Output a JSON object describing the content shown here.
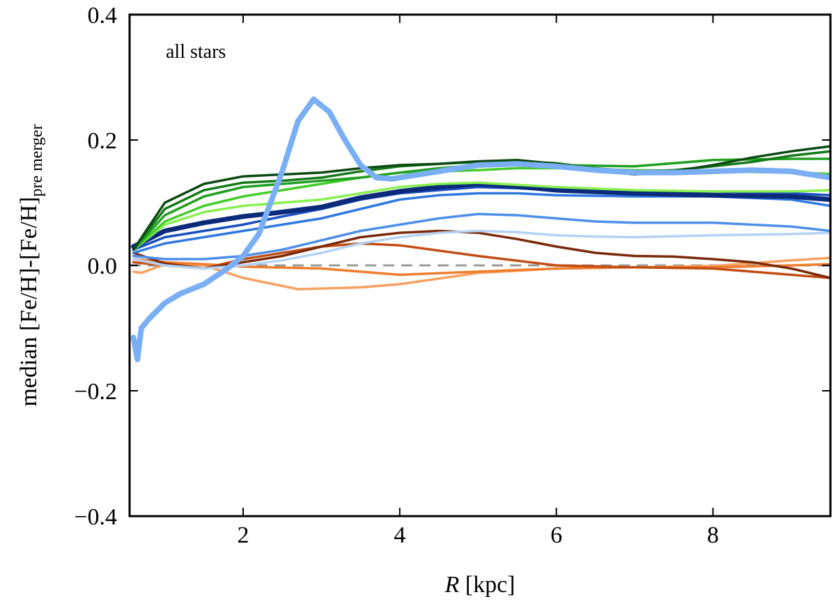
{
  "chart_data": {
    "type": "line",
    "annotation": "all stars",
    "xlabel": {
      "italic": "R",
      "rest": " [kpc]"
    },
    "ylabel": {
      "main": "median [Fe/H]-[Fe/H]",
      "subscript": "pre merger"
    },
    "xlim": [
      0.55,
      9.5
    ],
    "ylim": [
      -0.4,
      0.4
    ],
    "xticks": [
      2,
      4,
      6,
      8
    ],
    "xtick_labels": [
      "2",
      "4",
      "6",
      "8"
    ],
    "yticks": [
      -0.4,
      -0.2,
      0.0,
      0.2,
      0.4
    ],
    "ytick_labels": [
      "−0.4",
      "−0.2",
      "0.0",
      "0.2",
      "0.4"
    ],
    "grid": false,
    "reference_line": {
      "y": 0.0,
      "style": "dashed",
      "color": "#999999"
    },
    "series": [
      {
        "color": "#f7a060",
        "width": 3.5,
        "x": [
          0.6,
          0.7,
          1.0,
          1.5,
          2.0,
          2.7,
          3.5,
          4.0,
          5.0,
          6.0,
          7.0,
          8.0,
          9.0,
          9.5
        ],
        "y": [
          -0.01,
          -0.012,
          0.002,
          0.0,
          -0.02,
          -0.038,
          -0.035,
          -0.03,
          -0.012,
          -0.005,
          -0.003,
          -0.001,
          0.008,
          0.012
        ]
      },
      {
        "color": "#ef7d2e",
        "width": 3.5,
        "x": [
          0.6,
          1.0,
          1.5,
          2.0,
          3.0,
          4.0,
          5.0,
          6.0,
          7.0,
          8.0,
          9.0,
          9.5
        ],
        "y": [
          0.01,
          0.005,
          0.002,
          -0.002,
          -0.005,
          -0.015,
          -0.01,
          -0.005,
          -0.003,
          -0.003,
          0.0,
          0.002
        ]
      },
      {
        "color": "#c24d12",
        "width": 3.5,
        "x": [
          0.6,
          1.0,
          1.5,
          2.0,
          2.5,
          3.0,
          3.5,
          4.0,
          5.0,
          6.0,
          7.0,
          8.0,
          9.0,
          9.5
        ],
        "y": [
          0.005,
          0.0,
          -0.005,
          0.01,
          0.02,
          0.03,
          0.035,
          0.032,
          0.015,
          0.0,
          -0.003,
          -0.005,
          -0.015,
          -0.02
        ]
      },
      {
        "color": "#7a2a0a",
        "width": 3.5,
        "x": [
          0.6,
          1.0,
          1.5,
          2.0,
          2.5,
          3.0,
          3.5,
          4.0,
          4.5,
          5.0,
          5.5,
          6.0,
          6.5,
          7.0,
          7.5,
          8.0,
          8.5,
          9.0,
          9.5
        ],
        "y": [
          0.02,
          0.003,
          -0.005,
          0.005,
          0.015,
          0.03,
          0.045,
          0.052,
          0.055,
          0.052,
          0.042,
          0.03,
          0.02,
          0.015,
          0.014,
          0.01,
          0.005,
          -0.005,
          -0.02
        ]
      },
      {
        "color": "#b4d2f5",
        "width": 3.5,
        "x": [
          0.6,
          1.0,
          1.5,
          2.0,
          2.5,
          3.0,
          3.5,
          4.0,
          4.5,
          5.0,
          5.5,
          6.0,
          6.5,
          7.0,
          8.0,
          9.0,
          9.5
        ],
        "y": [
          0.01,
          0.0,
          -0.005,
          0.0,
          0.008,
          0.02,
          0.035,
          0.045,
          0.052,
          0.055,
          0.053,
          0.048,
          0.046,
          0.045,
          0.048,
          0.05,
          0.052
        ]
      },
      {
        "color": "#4d8fe8",
        "width": 3.5,
        "x": [
          0.6,
          1.0,
          1.5,
          2.0,
          2.5,
          3.0,
          3.5,
          4.0,
          4.5,
          5.0,
          5.5,
          6.0,
          6.5,
          7.0,
          8.0,
          9.0,
          9.5
        ],
        "y": [
          0.015,
          0.01,
          0.01,
          0.015,
          0.025,
          0.04,
          0.055,
          0.065,
          0.075,
          0.082,
          0.08,
          0.075,
          0.07,
          0.068,
          0.068,
          0.062,
          0.055
        ]
      },
      {
        "color": "#2f78e0",
        "width": 3.5,
        "x": [
          0.6,
          1.0,
          1.5,
          2.0,
          2.5,
          3.0,
          3.5,
          4.0,
          4.5,
          5.0,
          5.5,
          6.0,
          7.0,
          8.0,
          9.0,
          9.5
        ],
        "y": [
          0.02,
          0.035,
          0.045,
          0.055,
          0.065,
          0.075,
          0.09,
          0.105,
          0.112,
          0.115,
          0.115,
          0.112,
          0.11,
          0.11,
          0.105,
          0.095
        ]
      },
      {
        "color": "#1a4fc0",
        "width": 3.5,
        "x": [
          0.6,
          1.0,
          1.5,
          2.0,
          2.5,
          3.0,
          3.5,
          4.0,
          4.5,
          5.0,
          5.5,
          6.0,
          7.0,
          8.0,
          9.0,
          9.5
        ],
        "y": [
          0.025,
          0.045,
          0.055,
          0.065,
          0.078,
          0.09,
          0.105,
          0.115,
          0.12,
          0.125,
          0.123,
          0.12,
          0.118,
          0.118,
          0.115,
          0.112
        ]
      },
      {
        "color": "#0b2a7a",
        "width": 7,
        "x": [
          0.6,
          1.0,
          1.5,
          2.0,
          2.5,
          3.0,
          3.5,
          4.0,
          4.5,
          5.0,
          5.5,
          6.0,
          7.0,
          8.0,
          9.0,
          9.5
        ],
        "y": [
          0.03,
          0.055,
          0.068,
          0.078,
          0.085,
          0.093,
          0.108,
          0.118,
          0.125,
          0.13,
          0.126,
          0.12,
          0.115,
          0.112,
          0.11,
          0.105
        ]
      },
      {
        "color": "#88f050",
        "width": 3.5,
        "x": [
          0.6,
          1.0,
          1.5,
          2.0,
          2.5,
          3.0,
          3.5,
          4.0,
          4.5,
          5.0,
          6.0,
          7.0,
          8.0,
          9.0,
          9.5
        ],
        "y": [
          0.025,
          0.065,
          0.085,
          0.095,
          0.1,
          0.105,
          0.115,
          0.125,
          0.13,
          0.132,
          0.125,
          0.12,
          0.118,
          0.118,
          0.12
        ]
      },
      {
        "color": "#44cc2a",
        "width": 3.5,
        "x": [
          0.6,
          1.0,
          1.5,
          2.0,
          2.5,
          3.0,
          3.5,
          4.0,
          4.5,
          5.0,
          5.5,
          6.0,
          7.0,
          8.0,
          9.0,
          9.5
        ],
        "y": [
          0.025,
          0.07,
          0.095,
          0.11,
          0.12,
          0.13,
          0.14,
          0.148,
          0.15,
          0.152,
          0.155,
          0.155,
          0.152,
          0.15,
          0.148,
          0.146
        ]
      },
      {
        "color": "#20a020",
        "width": 3.5,
        "x": [
          0.6,
          1.0,
          1.5,
          2.0,
          2.5,
          3.0,
          3.5,
          4.0,
          4.5,
          5.0,
          5.5,
          6.0,
          7.0,
          8.0,
          9.0,
          9.5
        ],
        "y": [
          0.025,
          0.08,
          0.11,
          0.125,
          0.13,
          0.135,
          0.14,
          0.148,
          0.155,
          0.16,
          0.162,
          0.16,
          0.158,
          0.168,
          0.17,
          0.17
        ]
      },
      {
        "color": "#157a1a",
        "width": 3.5,
        "x": [
          0.6,
          1.0,
          1.5,
          2.0,
          2.5,
          3.0,
          3.5,
          4.0,
          4.5,
          5.0,
          5.5,
          6.0,
          6.5,
          7.0,
          7.5,
          8.0,
          8.5,
          9.0,
          9.5
        ],
        "y": [
          0.025,
          0.09,
          0.12,
          0.132,
          0.135,
          0.14,
          0.15,
          0.158,
          0.162,
          0.165,
          0.166,
          0.163,
          0.155,
          0.15,
          0.152,
          0.158,
          0.165,
          0.175,
          0.182
        ]
      },
      {
        "color": "#0b4a12",
        "width": 3.5,
        "x": [
          0.6,
          1.0,
          1.5,
          2.0,
          2.5,
          3.0,
          3.5,
          4.0,
          4.5,
          5.0,
          5.5,
          6.0,
          6.5,
          7.0,
          7.5,
          8.0,
          8.5,
          9.0,
          9.5
        ],
        "y": [
          0.025,
          0.1,
          0.13,
          0.142,
          0.145,
          0.148,
          0.155,
          0.16,
          0.162,
          0.166,
          0.168,
          0.162,
          0.152,
          0.145,
          0.15,
          0.16,
          0.172,
          0.182,
          0.19
        ]
      },
      {
        "color": "#7aaff5",
        "width": 8,
        "x": [
          0.6,
          0.65,
          0.7,
          0.8,
          1.0,
          1.2,
          1.5,
          1.8,
          2.0,
          2.2,
          2.5,
          2.7,
          2.9,
          3.1,
          3.3,
          3.5,
          3.7,
          3.9,
          4.1,
          4.5,
          5.0,
          5.5,
          6.0,
          6.5,
          7.0,
          7.5,
          8.0,
          8.5,
          9.0,
          9.5
        ],
        "y": [
          -0.115,
          -0.15,
          -0.1,
          -0.085,
          -0.06,
          -0.045,
          -0.03,
          -0.005,
          0.015,
          0.05,
          0.15,
          0.23,
          0.265,
          0.245,
          0.2,
          0.16,
          0.14,
          0.138,
          0.142,
          0.15,
          0.16,
          0.162,
          0.158,
          0.152,
          0.148,
          0.148,
          0.15,
          0.152,
          0.15,
          0.14
        ]
      }
    ]
  }
}
